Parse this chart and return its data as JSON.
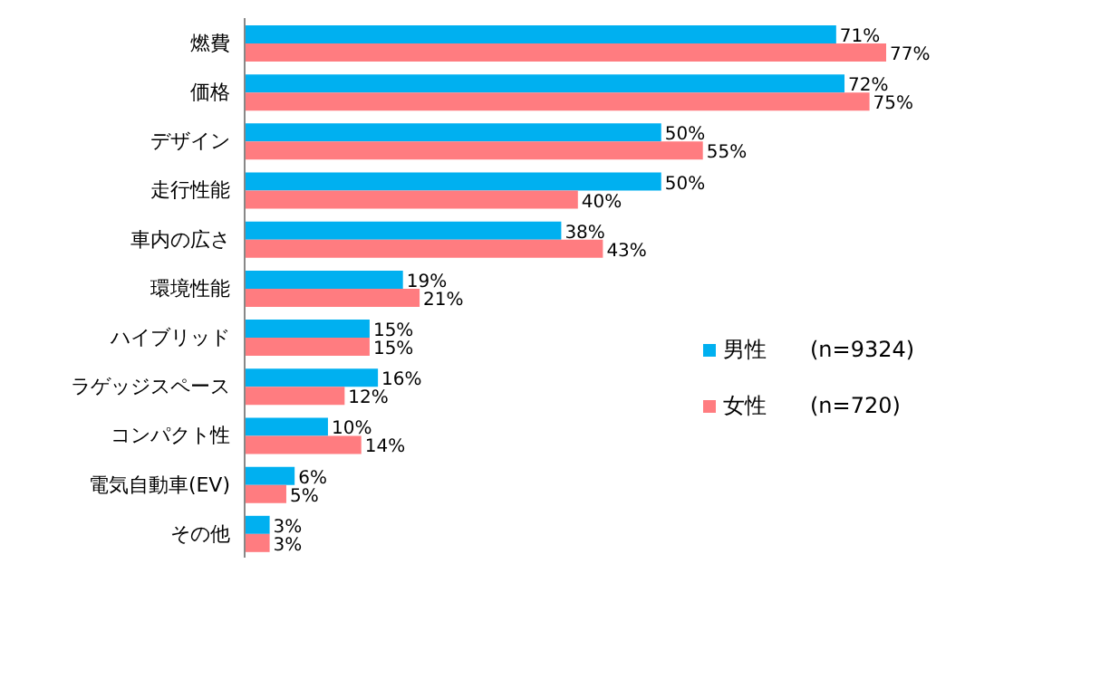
{
  "chart_data": {
    "type": "bar",
    "orientation": "horizontal",
    "categories": [
      "燃費",
      "価格",
      "デザイン",
      "走行性能",
      "車内の広さ",
      "環境性能",
      "ハイブリッド",
      "ラゲッジスペース",
      "コンパクト性",
      "電気自動車(EV)",
      "その他"
    ],
    "series": [
      {
        "name": "男性　　(n=9324)",
        "color": "#00b0f0",
        "values": [
          71,
          72,
          50,
          50,
          38,
          19,
          15,
          16,
          10,
          6,
          3
        ],
        "value_labels": [
          "71%",
          "72%",
          "50%",
          "50%",
          "38%",
          "19%",
          "15%",
          "16%",
          "10%",
          "6%",
          "3%"
        ]
      },
      {
        "name": "女性　　(n=720)",
        "color": "#ff7c80",
        "values": [
          77,
          75,
          55,
          40,
          43,
          21,
          15,
          12,
          14,
          5,
          3
        ],
        "value_labels": [
          "77%",
          "75%",
          "55%",
          "40%",
          "43%",
          "21%",
          "15%",
          "12%",
          "14%",
          "5%",
          "3%"
        ]
      }
    ],
    "legend": "right",
    "grid": false
  }
}
